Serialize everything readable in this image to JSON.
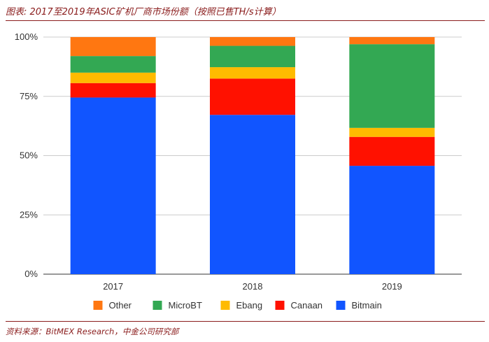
{
  "header": {
    "title": "图表: 2017至2019年ASIC矿机厂商市场份额（按照已售TH/s计算）"
  },
  "footer": {
    "source": "资料来源：BitMEX Research，中金公司研究部"
  },
  "chart_data": {
    "type": "bar",
    "stacked": true,
    "title": "图表: 2017至2019年ASIC矿机厂商市场份额（按照已售TH/s计算）",
    "xlabel": "",
    "ylabel": "",
    "ylim": [
      0,
      100
    ],
    "y_ticks": [
      "0%",
      "25%",
      "50%",
      "75%",
      "100%"
    ],
    "y_tick_values": [
      0,
      25,
      50,
      75,
      100
    ],
    "categories": [
      "2017",
      "2018",
      "2019"
    ],
    "series": [
      {
        "name": "Bitmain",
        "color": "#1155ff",
        "values": [
          74.5,
          67.2,
          45.7
        ]
      },
      {
        "name": "Canaan",
        "color": "#ff1100",
        "values": [
          6.1,
          15.3,
          12.2
        ]
      },
      {
        "name": "Ebang",
        "color": "#ffbb00",
        "values": [
          4.4,
          4.8,
          3.8
        ]
      },
      {
        "name": "MicroBT",
        "color": "#33a853",
        "values": [
          7.0,
          9.0,
          35.3
        ]
      },
      {
        "name": "Other",
        "color": "#ff7711",
        "values": [
          8.0,
          3.7,
          3.0
        ]
      }
    ],
    "legend": {
      "position": "bottom",
      "order": [
        "Other",
        "MicroBT",
        "Ebang",
        "Canaan",
        "Bitmain"
      ]
    },
    "grid": true
  }
}
